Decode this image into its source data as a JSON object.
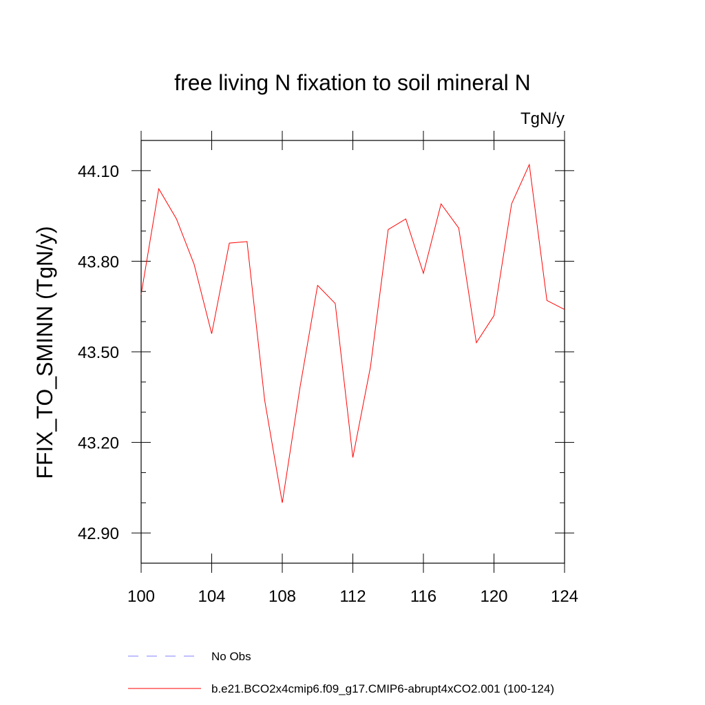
{
  "chart_data": {
    "type": "line",
    "title": "free living N fixation to soil mineral N",
    "units_label": "TgN/y",
    "xlabel": "",
    "ylabel": "FFIX_TO_SMINN  (TgN/y)",
    "xlim": [
      100,
      124
    ],
    "ylim": [
      42.8,
      44.2
    ],
    "x_ticks": [
      100,
      104,
      108,
      112,
      116,
      120,
      124
    ],
    "x_tick_labels": [
      "100",
      "104",
      "108",
      "112",
      "116",
      "120",
      "124"
    ],
    "y_ticks": [
      42.9,
      43.2,
      43.5,
      43.8,
      44.1
    ],
    "y_tick_labels": [
      "42.90",
      "43.20",
      "43.50",
      "43.80",
      "44.10"
    ],
    "grid": false,
    "series": [
      {
        "name": "b.e21.BCO2x4cmip6.f09_g17.CMIP6-abrupt4xCO2.001 (100-124)",
        "color": "#ff0000",
        "x": [
          100,
          101,
          102,
          103,
          104,
          105,
          106,
          107,
          108,
          109,
          110,
          111,
          112,
          113,
          114,
          115,
          116,
          117,
          118,
          119,
          120,
          121,
          122,
          123,
          124
        ],
        "values": [
          43.69,
          44.04,
          43.94,
          43.79,
          43.56,
          43.86,
          43.865,
          43.34,
          43.0,
          43.38,
          43.72,
          43.66,
          43.15,
          43.45,
          43.905,
          43.94,
          43.76,
          43.99,
          43.91,
          43.53,
          43.62,
          43.99,
          44.12,
          43.67,
          43.64
        ]
      }
    ],
    "legend": {
      "placement": "bottom",
      "entries": [
        {
          "label": "No Obs",
          "style": "dashed",
          "color": "#8080ff"
        },
        {
          "label": "b.e21.BCO2x4cmip6.f09_g17.CMIP6-abrupt4xCO2.001 (100-124)",
          "style": "solid",
          "color": "#ff0000"
        }
      ]
    },
    "colors": {
      "axis": "#000000",
      "line": "#ff0000",
      "obs": "#8080ff"
    }
  }
}
